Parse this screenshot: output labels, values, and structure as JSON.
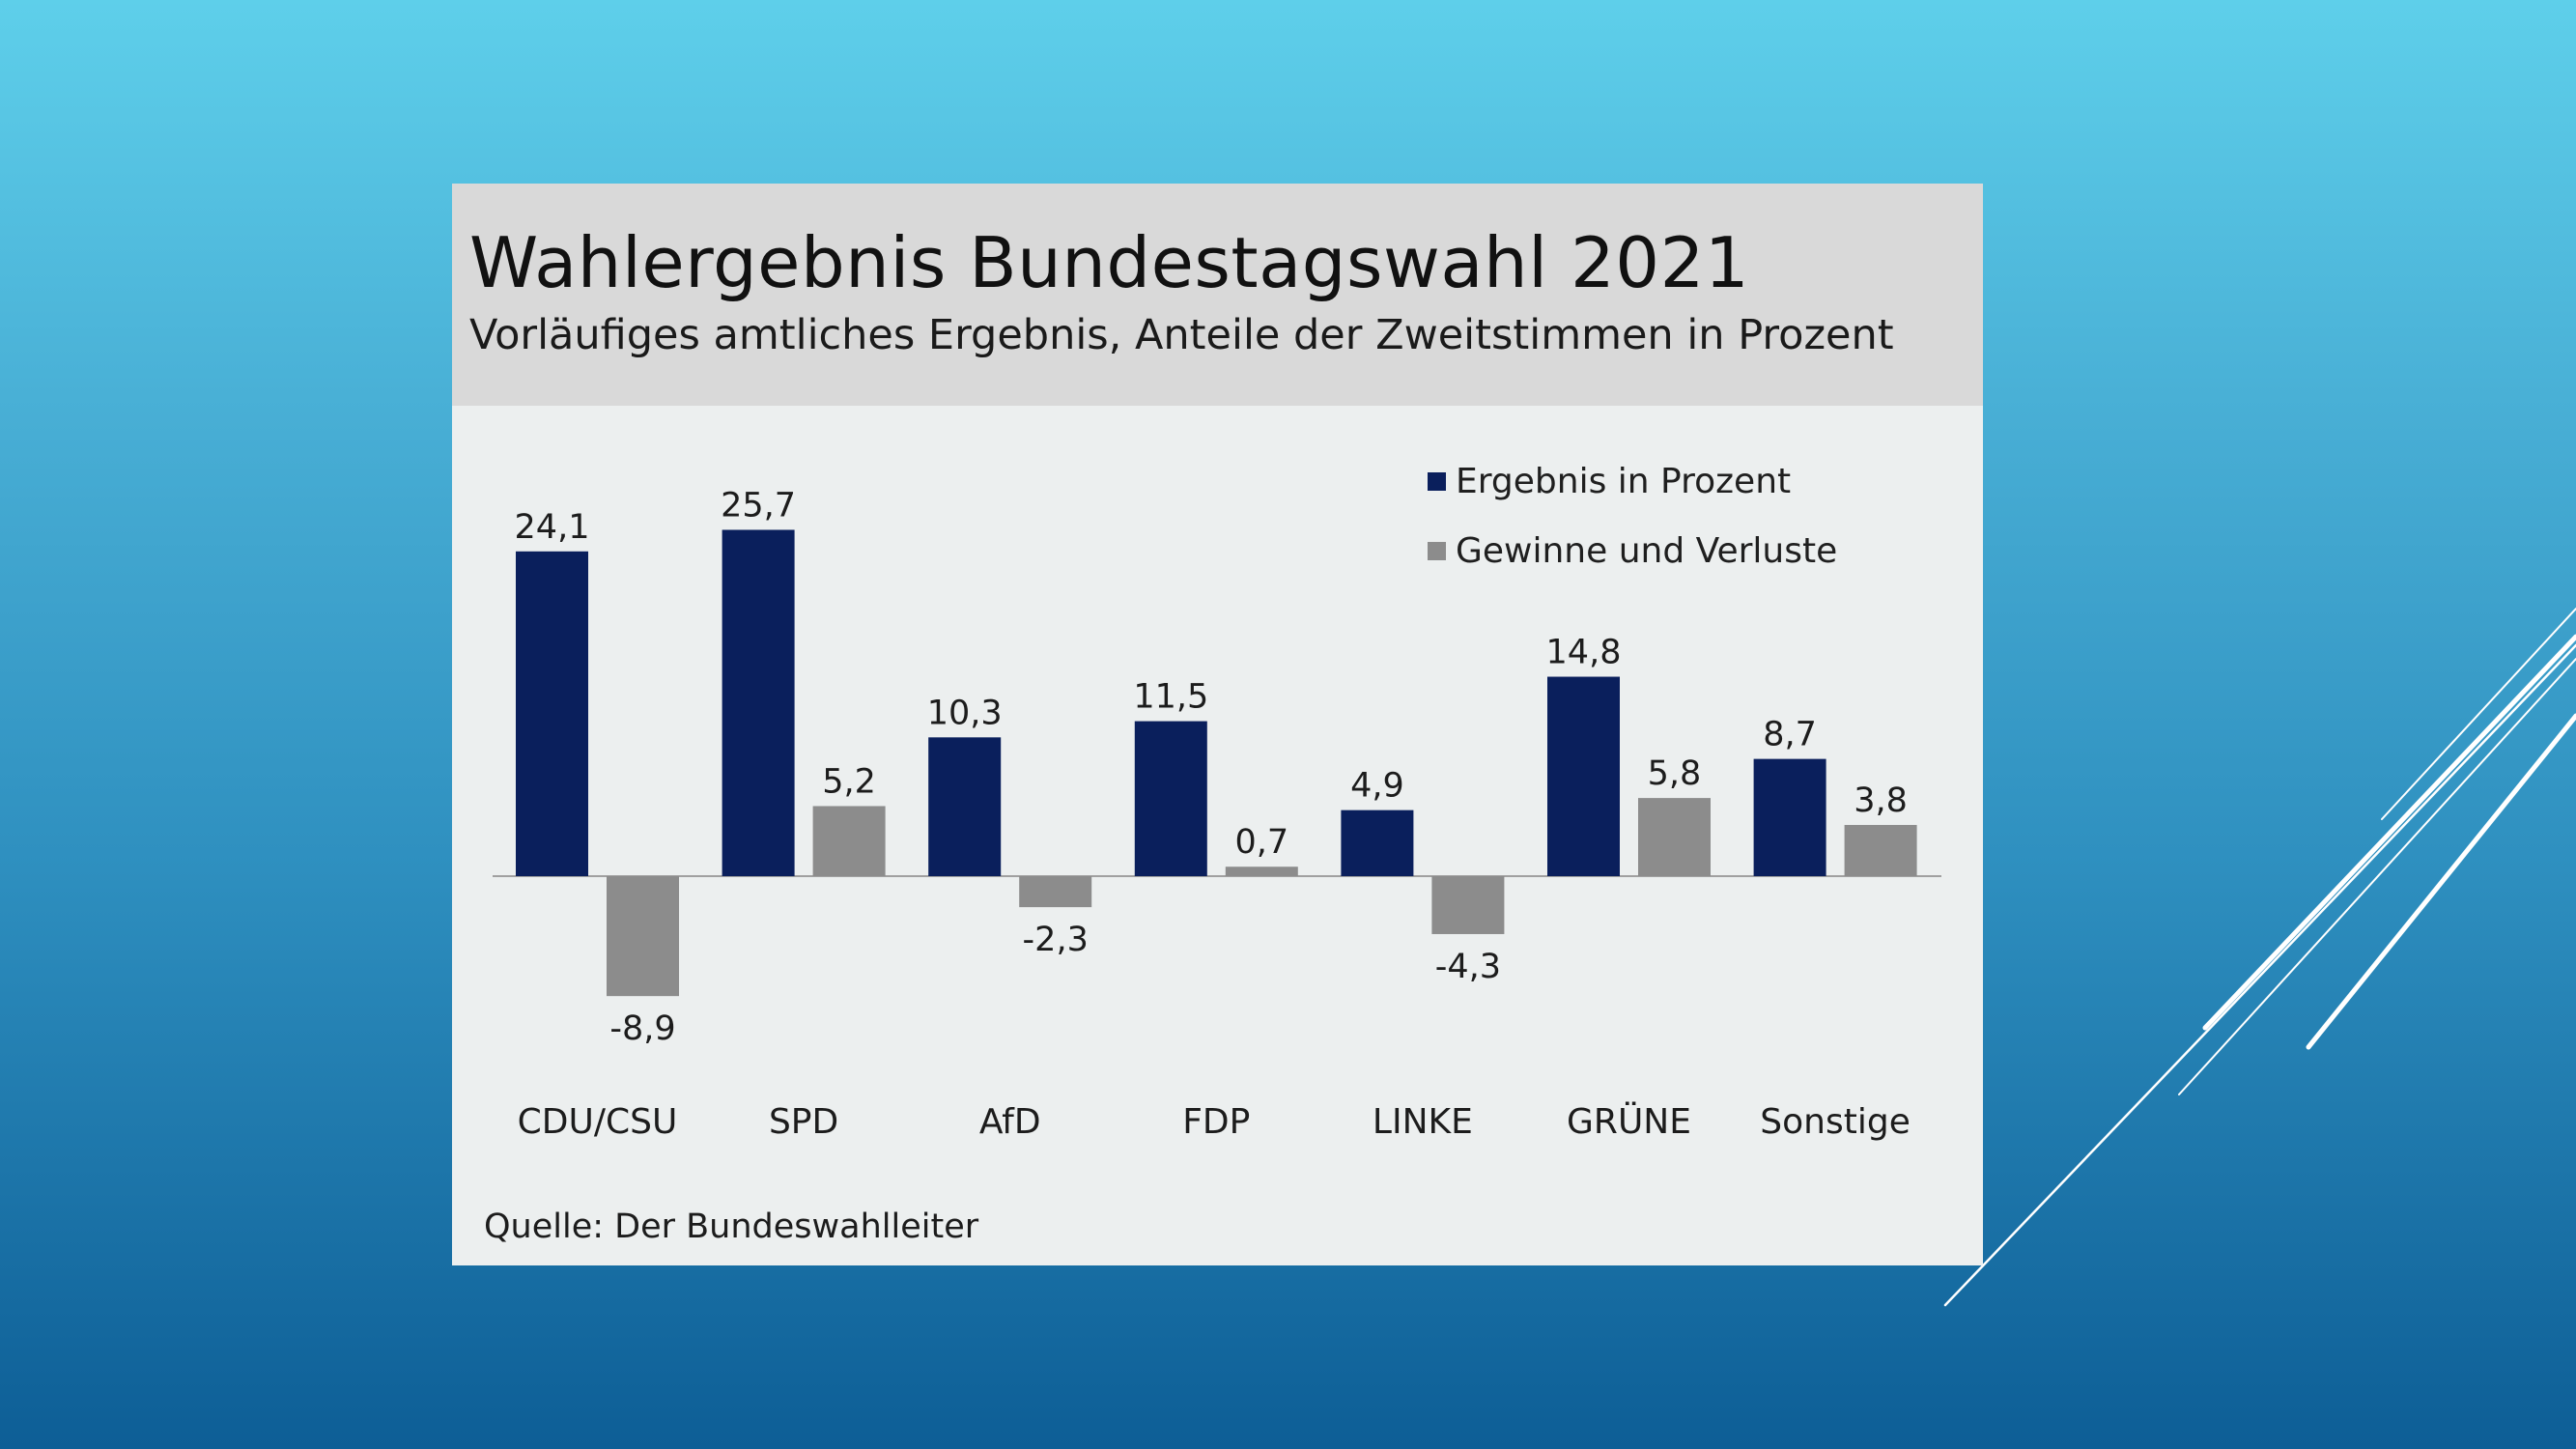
{
  "slide": {
    "background_top": "#5ecfea",
    "background_bottom": "#0d5e96"
  },
  "chart_data": {
    "type": "bar",
    "title": "Wahlergebnis Bundestagswahl 2021",
    "subtitle": "Vorläufiges amtliches Ergebnis, Anteile der Zweitstimmen in Prozent",
    "xlabel": "",
    "ylabel": "",
    "grid": false,
    "legend_position": "top-right",
    "categories": [
      "CDU/CSU",
      "SPD",
      "AfD",
      "FDP",
      "LINKE",
      "GRÜNE",
      "Sonstige"
    ],
    "series": [
      {
        "name": "Ergebnis in Prozent",
        "color": "#0a1f5c",
        "values": [
          24.1,
          25.7,
          10.3,
          11.5,
          4.9,
          14.8,
          8.7
        ],
        "labels": [
          "24,1",
          "25,7",
          "10,3",
          "11,5",
          "4,9",
          "14,8",
          "8,7"
        ]
      },
      {
        "name": "Gewinne und Verluste",
        "color": "#8c8c8c",
        "values": [
          -8.9,
          5.2,
          -2.3,
          0.7,
          -4.3,
          5.8,
          3.8
        ],
        "labels": [
          "-8,9",
          "5,2",
          "-2,3",
          "0,7",
          "-4,3",
          "5,8",
          "3,8"
        ]
      }
    ],
    "ylim": [
      -10,
      27
    ],
    "source": "Quelle:  Der Bundeswahlleiter"
  }
}
